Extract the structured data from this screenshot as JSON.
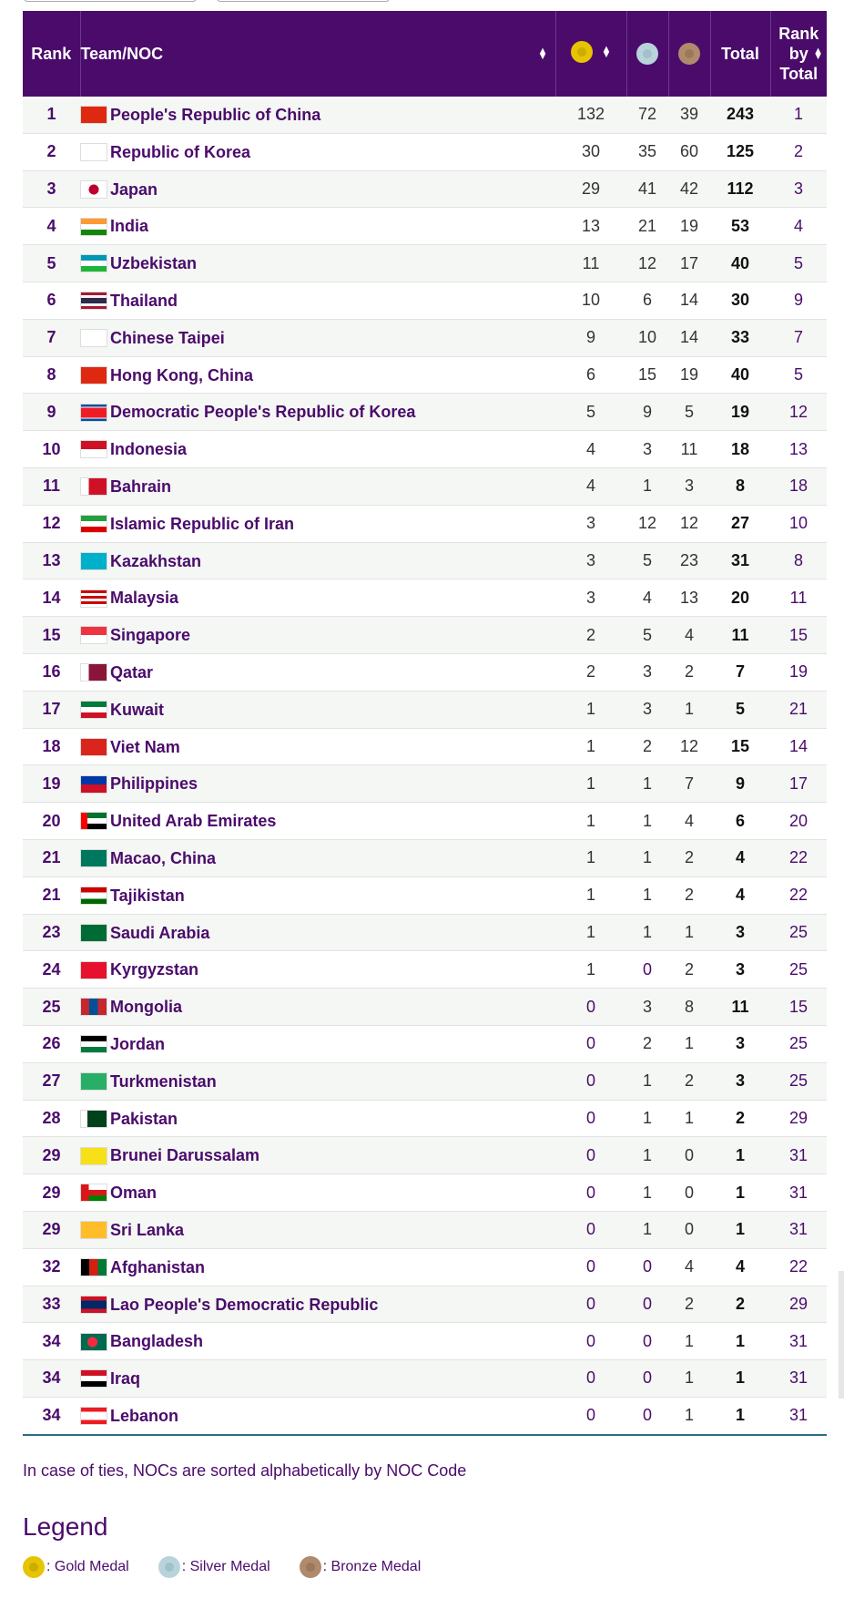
{
  "header": {
    "rank": "Rank",
    "team": "Team/NOC",
    "total": "Total",
    "rank_by_total": [
      "Rank",
      "by",
      "Total"
    ]
  },
  "icons": {
    "gold": "gold-medal-icon",
    "silver": "silver-medal-icon",
    "bronze": "bronze-medal-icon",
    "sort": "sort-arrows-icon"
  },
  "colors": {
    "header_bg": "#4b0b6b",
    "accent": "#4b0b6b",
    "gold": "#e6c400",
    "silver": "#b9d3db",
    "bronze": "#b08a6c",
    "table_bottom_rule": "#2e6b85"
  },
  "rows": [
    {
      "rank": "1",
      "team": "People's Republic of China",
      "flag": "CHN",
      "gold": "132",
      "silver": "72",
      "bronze": "39",
      "total": "243",
      "rbt": "1"
    },
    {
      "rank": "2",
      "team": "Republic of Korea",
      "flag": "KOR",
      "gold": "30",
      "silver": "35",
      "bronze": "60",
      "total": "125",
      "rbt": "2"
    },
    {
      "rank": "3",
      "team": "Japan",
      "flag": "JPN",
      "gold": "29",
      "silver": "41",
      "bronze": "42",
      "total": "112",
      "rbt": "3"
    },
    {
      "rank": "4",
      "team": "India",
      "flag": "IND",
      "gold": "13",
      "silver": "21",
      "bronze": "19",
      "total": "53",
      "rbt": "4"
    },
    {
      "rank": "5",
      "team": "Uzbekistan",
      "flag": "UZB",
      "gold": "11",
      "silver": "12",
      "bronze": "17",
      "total": "40",
      "rbt": "5"
    },
    {
      "rank": "6",
      "team": "Thailand",
      "flag": "THA",
      "gold": "10",
      "silver": "6",
      "bronze": "14",
      "total": "30",
      "rbt": "9"
    },
    {
      "rank": "7",
      "team": "Chinese Taipei",
      "flag": "TPE",
      "gold": "9",
      "silver": "10",
      "bronze": "14",
      "total": "33",
      "rbt": "7"
    },
    {
      "rank": "8",
      "team": "Hong Kong, China",
      "flag": "HKG",
      "gold": "6",
      "silver": "15",
      "bronze": "19",
      "total": "40",
      "rbt": "5"
    },
    {
      "rank": "9",
      "team": "Democratic People's Republic of Korea",
      "flag": "PRK",
      "gold": "5",
      "silver": "9",
      "bronze": "5",
      "total": "19",
      "rbt": "12"
    },
    {
      "rank": "10",
      "team": "Indonesia",
      "flag": "INA",
      "gold": "4",
      "silver": "3",
      "bronze": "11",
      "total": "18",
      "rbt": "13"
    },
    {
      "rank": "11",
      "team": "Bahrain",
      "flag": "BRN",
      "gold": "4",
      "silver": "1",
      "bronze": "3",
      "total": "8",
      "rbt": "18"
    },
    {
      "rank": "12",
      "team": "Islamic Republic of Iran",
      "flag": "IRI",
      "gold": "3",
      "silver": "12",
      "bronze": "12",
      "total": "27",
      "rbt": "10"
    },
    {
      "rank": "13",
      "team": "Kazakhstan",
      "flag": "KAZ",
      "gold": "3",
      "silver": "5",
      "bronze": "23",
      "total": "31",
      "rbt": "8"
    },
    {
      "rank": "14",
      "team": "Malaysia",
      "flag": "MAS",
      "gold": "3",
      "silver": "4",
      "bronze": "13",
      "total": "20",
      "rbt": "11"
    },
    {
      "rank": "15",
      "team": "Singapore",
      "flag": "SGP",
      "gold": "2",
      "silver": "5",
      "bronze": "4",
      "total": "11",
      "rbt": "15"
    },
    {
      "rank": "16",
      "team": "Qatar",
      "flag": "QAT",
      "gold": "2",
      "silver": "3",
      "bronze": "2",
      "total": "7",
      "rbt": "19"
    },
    {
      "rank": "17",
      "team": "Kuwait",
      "flag": "KUW",
      "gold": "1",
      "silver": "3",
      "bronze": "1",
      "total": "5",
      "rbt": "21"
    },
    {
      "rank": "18",
      "team": "Viet Nam",
      "flag": "VIE",
      "gold": "1",
      "silver": "2",
      "bronze": "12",
      "total": "15",
      "rbt": "14"
    },
    {
      "rank": "19",
      "team": "Philippines",
      "flag": "PHI",
      "gold": "1",
      "silver": "1",
      "bronze": "7",
      "total": "9",
      "rbt": "17"
    },
    {
      "rank": "20",
      "team": "United Arab Emirates",
      "flag": "UAE",
      "gold": "1",
      "silver": "1",
      "bronze": "4",
      "total": "6",
      "rbt": "20"
    },
    {
      "rank": "21",
      "team": "Macao, China",
      "flag": "MAC",
      "gold": "1",
      "silver": "1",
      "bronze": "2",
      "total": "4",
      "rbt": "22"
    },
    {
      "rank": "21",
      "team": "Tajikistan",
      "flag": "TJK",
      "gold": "1",
      "silver": "1",
      "bronze": "2",
      "total": "4",
      "rbt": "22"
    },
    {
      "rank": "23",
      "team": "Saudi Arabia",
      "flag": "KSA",
      "gold": "1",
      "silver": "1",
      "bronze": "1",
      "total": "3",
      "rbt": "25"
    },
    {
      "rank": "24",
      "team": "Kyrgyzstan",
      "flag": "KGZ",
      "gold": "1",
      "silver": "0",
      "bronze": "2",
      "total": "3",
      "rbt": "25"
    },
    {
      "rank": "25",
      "team": "Mongolia",
      "flag": "MGL",
      "gold": "0",
      "silver": "3",
      "bronze": "8",
      "total": "11",
      "rbt": "15"
    },
    {
      "rank": "26",
      "team": "Jordan",
      "flag": "JOR",
      "gold": "0",
      "silver": "2",
      "bronze": "1",
      "total": "3",
      "rbt": "25"
    },
    {
      "rank": "27",
      "team": "Turkmenistan",
      "flag": "TKM",
      "gold": "0",
      "silver": "1",
      "bronze": "2",
      "total": "3",
      "rbt": "25"
    },
    {
      "rank": "28",
      "team": "Pakistan",
      "flag": "PAK",
      "gold": "0",
      "silver": "1",
      "bronze": "1",
      "total": "2",
      "rbt": "29"
    },
    {
      "rank": "29",
      "team": "Brunei Darussalam",
      "flag": "BRU",
      "gold": "0",
      "silver": "1",
      "bronze": "0",
      "total": "1",
      "rbt": "31"
    },
    {
      "rank": "29",
      "team": "Oman",
      "flag": "OMA",
      "gold": "0",
      "silver": "1",
      "bronze": "0",
      "total": "1",
      "rbt": "31"
    },
    {
      "rank": "29",
      "team": "Sri Lanka",
      "flag": "SRI",
      "gold": "0",
      "silver": "1",
      "bronze": "0",
      "total": "1",
      "rbt": "31"
    },
    {
      "rank": "32",
      "team": "Afghanistan",
      "flag": "AFG",
      "gold": "0",
      "silver": "0",
      "bronze": "4",
      "total": "4",
      "rbt": "22"
    },
    {
      "rank": "33",
      "team": "Lao People's Democratic Republic",
      "flag": "LAO",
      "gold": "0",
      "silver": "0",
      "bronze": "2",
      "total": "2",
      "rbt": "29"
    },
    {
      "rank": "34",
      "team": "Bangladesh",
      "flag": "BAN",
      "gold": "0",
      "silver": "0",
      "bronze": "1",
      "total": "1",
      "rbt": "31"
    },
    {
      "rank": "34",
      "team": "Iraq",
      "flag": "IRQ",
      "gold": "0",
      "silver": "0",
      "bronze": "1",
      "total": "1",
      "rbt": "31"
    },
    {
      "rank": "34",
      "team": "Lebanon",
      "flag": "LBN",
      "gold": "0",
      "silver": "0",
      "bronze": "1",
      "total": "1",
      "rbt": "31"
    }
  ],
  "note": "In case of ties, NOCs are sorted alphabetically by NOC Code",
  "legend": {
    "title": "Legend",
    "gold": ": Gold Medal",
    "silver": ": Silver Medal",
    "bronze": ": Bronze Medal"
  }
}
